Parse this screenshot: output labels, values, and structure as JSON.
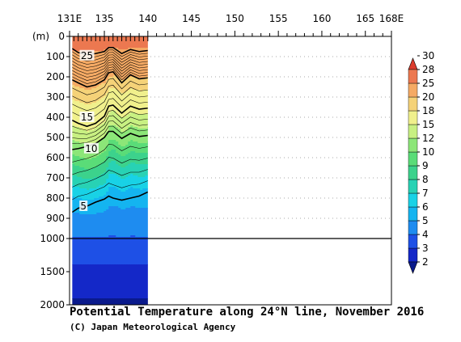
{
  "chart_data": {
    "type": "heatmap",
    "title": "Potential Temperature along 24°N line, November 2016",
    "credit": "(C) Japan Meteorological Agency",
    "x_axis": {
      "range": [
        131,
        168
      ],
      "tick_labels": [
        {
          "value": 131,
          "label": "131E"
        },
        {
          "value": 135,
          "label": "135"
        },
        {
          "value": 140,
          "label": "140"
        },
        {
          "value": 145,
          "label": "145"
        },
        {
          "value": 150,
          "label": "150"
        },
        {
          "value": 155,
          "label": "155"
        },
        {
          "value": 160,
          "label": "160"
        },
        {
          "value": 165,
          "label": "165"
        },
        {
          "value": 168,
          "label": "168E"
        }
      ],
      "station_longitudes": [
        131.5,
        132.0,
        132.5,
        133.0,
        133.5,
        134.0,
        134.5,
        135.0,
        135.5,
        136.0,
        136.5,
        137.0,
        137.5,
        138.0,
        138.5,
        139.0,
        139.5,
        140.0
      ]
    },
    "y_axis": {
      "unit_label": "(m)",
      "upper_range": [
        0,
        1000
      ],
      "lower_range": [
        1000,
        2000
      ],
      "upper_ticks": [
        0,
        100,
        200,
        300,
        400,
        500,
        600,
        700,
        800,
        900,
        1000
      ],
      "lower_ticks": [
        1500,
        2000
      ],
      "gridlines": "dotted, every 100 m in upper section"
    },
    "data_extent_lon": [
      131.3,
      140.0
    ],
    "colorbar": {
      "levels": [
        2,
        3,
        4,
        5,
        6,
        7,
        8,
        9,
        10,
        12,
        15,
        18,
        20,
        25,
        28,
        30
      ],
      "colors": [
        "#0a1a8c",
        "#1428c8",
        "#1e50e6",
        "#1e8cf0",
        "#14b4f0",
        "#19d2e6",
        "#28d2b4",
        "#3cd28c",
        "#5adc78",
        "#8ce678",
        "#c8f082",
        "#f0f08c",
        "#f5d278",
        "#f5aa64",
        "#ec7850",
        "#dc3c2d"
      ]
    },
    "isotherms_depth_m": [
      {
        "temp": 25,
        "x": [
          131.3,
          132.0,
          133.0,
          134.0,
          135.0,
          135.5,
          136.0,
          137.0,
          138.0,
          139.0,
          140.0
        ],
        "y": [
          60,
          80,
          90,
          85,
          75,
          55,
          55,
          85,
          65,
          75,
          70
        ]
      },
      {
        "temp": 20,
        "x": [
          131.3,
          132.0,
          133.0,
          134.0,
          135.0,
          135.5,
          136.0,
          137.0,
          138.0,
          139.0,
          140.0
        ],
        "y": [
          215,
          230,
          250,
          240,
          215,
          180,
          175,
          230,
          190,
          210,
          205
        ]
      },
      {
        "temp": 15,
        "x": [
          131.3,
          132.0,
          133.0,
          134.0,
          135.0,
          135.5,
          136.0,
          137.0,
          138.0,
          139.0,
          140.0
        ],
        "y": [
          415,
          430,
          445,
          430,
          395,
          345,
          340,
          380,
          345,
          360,
          355
        ]
      },
      {
        "temp": 10,
        "x": [
          131.3,
          132.0,
          133.0,
          134.0,
          135.0,
          135.5,
          136.0,
          137.0,
          138.0,
          139.0,
          140.0
        ],
        "y": [
          560,
          555,
          545,
          530,
          500,
          470,
          470,
          505,
          480,
          495,
          490
        ]
      },
      {
        "temp": 5,
        "x": [
          131.3,
          132.0,
          133.0,
          134.0,
          135.0,
          135.5,
          136.0,
          137.0,
          138.0,
          139.0,
          140.0
        ],
        "y": [
          870,
          850,
          840,
          820,
          805,
          790,
          800,
          810,
          800,
          790,
          770
        ]
      }
    ],
    "temperature_profile": [
      {
        "depth": 0,
        "temp": 26.5
      },
      {
        "depth": 100,
        "temp": 24
      },
      {
        "depth": 200,
        "temp": 20.5
      },
      {
        "depth": 300,
        "temp": 17.5
      },
      {
        "depth": 400,
        "temp": 15.3
      },
      {
        "depth": 500,
        "temp": 11
      },
      {
        "depth": 600,
        "temp": 9
      },
      {
        "depth": 700,
        "temp": 7.2
      },
      {
        "depth": 800,
        "temp": 5.5
      },
      {
        "depth": 900,
        "temp": 4.6
      },
      {
        "depth": 1000,
        "temp": 3.9
      },
      {
        "depth": 1500,
        "temp": 2.7
      },
      {
        "depth": 2000,
        "temp": 1.8
      }
    ],
    "contour_labels": [
      {
        "text": "25",
        "lon": 133.0,
        "depth": 95
      },
      {
        "text": "15",
        "lon": 133.0,
        "depth": 400
      },
      {
        "text": "10",
        "lon": 133.5,
        "depth": 555
      },
      {
        "text": "5",
        "lon": 132.6,
        "depth": 840
      }
    ]
  }
}
